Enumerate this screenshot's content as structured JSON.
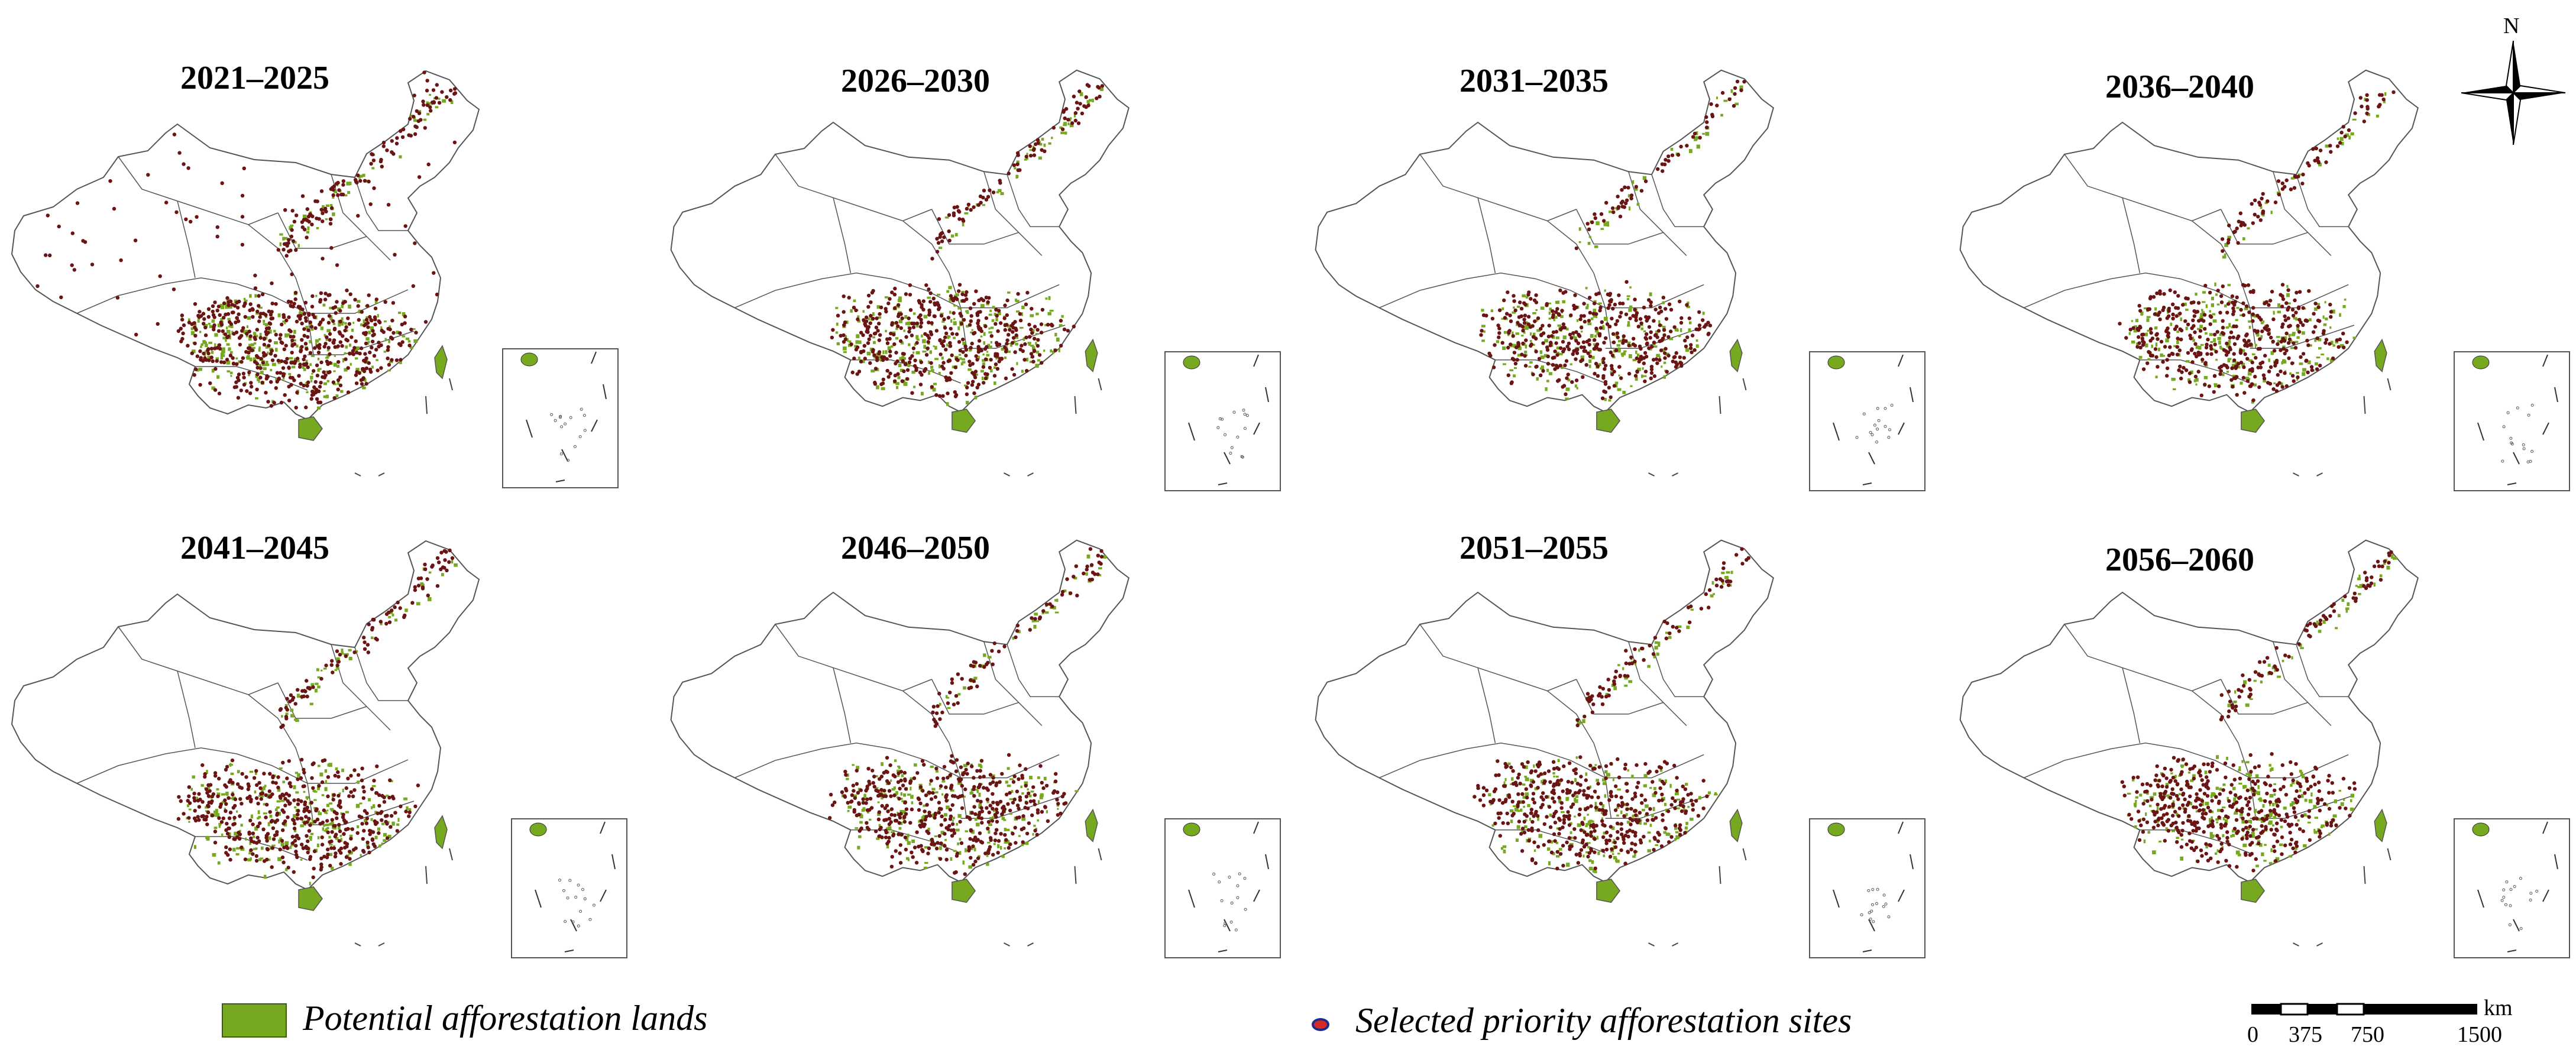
{
  "panels": [
    {
      "title": "2021–2025",
      "density": 0.95,
      "site_density": "high",
      "inset": true
    },
    {
      "title": "2026–2030",
      "density": 0.75,
      "site_density": "medium",
      "inset": true
    },
    {
      "title": "2031–2035",
      "density": 0.75,
      "site_density": "medium",
      "inset": true
    },
    {
      "title": "2036–2040",
      "density": 0.7,
      "site_density": "medium",
      "inset": true
    },
    {
      "title": "2041–2045",
      "density": 0.75,
      "site_density": "medium",
      "inset": true
    },
    {
      "title": "2046–2050",
      "density": 0.75,
      "site_density": "medium",
      "inset": true
    },
    {
      "title": "2051–2055",
      "density": 0.72,
      "site_density": "medium",
      "inset": true
    },
    {
      "title": "2056–2060",
      "density": 0.7,
      "site_density": "medium",
      "inset": true
    }
  ],
  "legend": {
    "potential_label": "Potential afforestation lands",
    "selected_label": "Selected priority afforestation sites"
  },
  "scale_bar": {
    "unit": "km",
    "ticks": [
      "0",
      "375",
      "750",
      "1500"
    ]
  },
  "north_arrow": {
    "label": "N"
  },
  "colors": {
    "potential_land": "#76a820",
    "selected_site": "#6b1414",
    "legend_dot_fill": "#d42a2a",
    "legend_dot_edge": "#1e2a8c",
    "boundary": "#555555"
  }
}
